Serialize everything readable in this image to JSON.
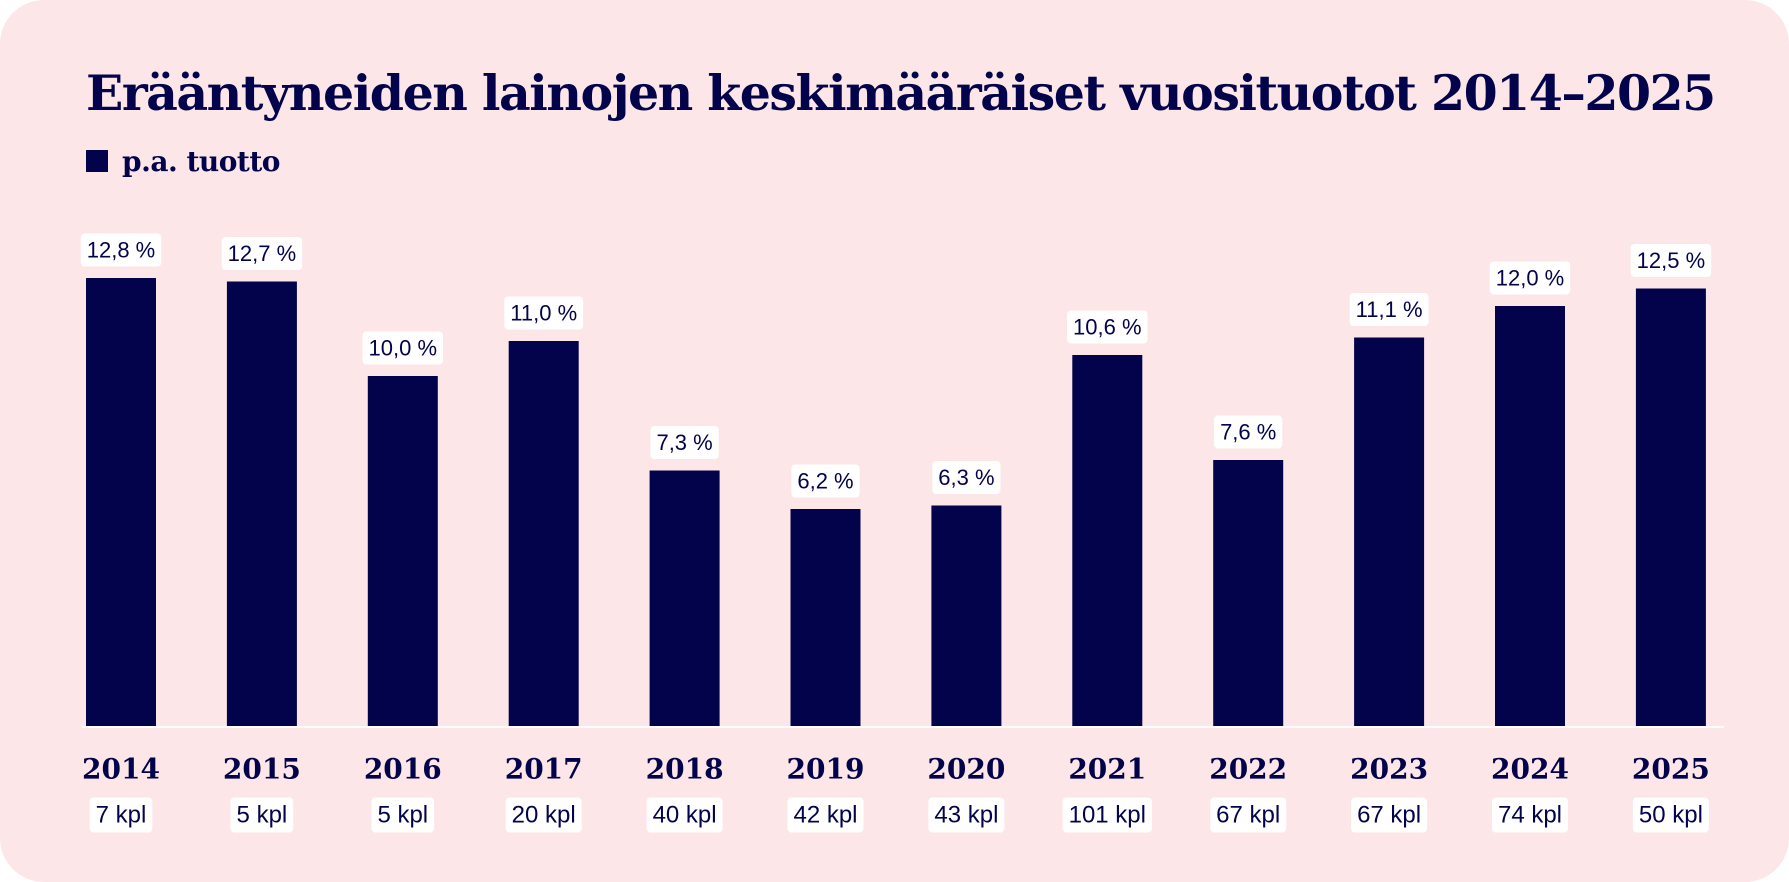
{
  "colors": {
    "background": "#fce6e8",
    "bar": "#02034b",
    "text": "#02034b",
    "label_bg": "#ffffff",
    "axis": "#ffffff"
  },
  "chart_data": {
    "type": "bar",
    "title": "Erääntyneiden lainojen keskimääräiset vuosituotot 2014–2025",
    "legend_position": "top-left",
    "grid": false,
    "categories": [
      "2014",
      "2015",
      "2016",
      "2017",
      "2018",
      "2019",
      "2020",
      "2021",
      "2022",
      "2023",
      "2024",
      "2025"
    ],
    "series": [
      {
        "name": "p.a. tuotto",
        "values": [
          12.8,
          12.7,
          10.0,
          11.0,
          7.3,
          6.2,
          6.3,
          10.6,
          7.6,
          11.1,
          12.0,
          12.5
        ],
        "data_labels": [
          "12,8 %",
          "12,7 %",
          "10,0 %",
          "11,0 %",
          "7,3 %",
          "6,2 %",
          "6,3 %",
          "10,6 %",
          "7,6 %",
          "11,1 %",
          "12,0 %",
          "12,5 %"
        ]
      }
    ],
    "counts": [
      "7 kpl",
      "5 kpl",
      "5 kpl",
      "20 kpl",
      "40 kpl",
      "42 kpl",
      "43 kpl",
      "101 kpl",
      "67 kpl",
      "67 kpl",
      "74 kpl",
      "50 kpl"
    ],
    "ylim": [
      0,
      13
    ]
  }
}
